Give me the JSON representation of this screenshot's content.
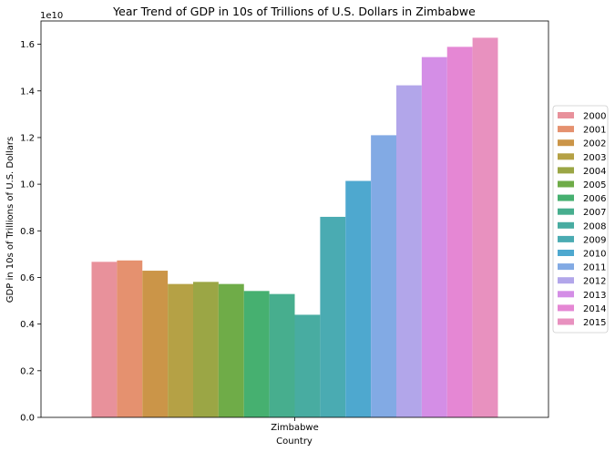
{
  "chart_data": {
    "type": "bar",
    "title": "Year Trend of GDP in 10s of Trillions of U.S. Dollars in Zimbabwe",
    "xlabel": "Country",
    "ylabel": "GDP in 10s of Trillions of U.S. Dollars",
    "axis_multiplier": "1e10",
    "categories": [
      "Zimbabwe"
    ],
    "ylim": [
      0,
      1.7
    ],
    "yticks": [
      "0.0",
      "0.2",
      "0.4",
      "0.6",
      "0.8",
      "1.0",
      "1.2",
      "1.4",
      "1.6"
    ],
    "grid": false,
    "legend_position": "center-right",
    "series": [
      {
        "name": "2000",
        "color": "#e8919b",
        "values": [
          0.667
        ]
      },
      {
        "name": "2001",
        "color": "#e5916f",
        "values": [
          0.673
        ]
      },
      {
        "name": "2002",
        "color": "#cb9548",
        "values": [
          0.629
        ]
      },
      {
        "name": "2003",
        "color": "#b5a145",
        "values": [
          0.572
        ]
      },
      {
        "name": "2004",
        "color": "#9ba645",
        "values": [
          0.581
        ]
      },
      {
        "name": "2005",
        "color": "#6fac48",
        "values": [
          0.572
        ]
      },
      {
        "name": "2006",
        "color": "#46b070",
        "values": [
          0.542
        ]
      },
      {
        "name": "2007",
        "color": "#47ae8e",
        "values": [
          0.529
        ]
      },
      {
        "name": "2008",
        "color": "#48aca1",
        "values": [
          0.44
        ]
      },
      {
        "name": "2009",
        "color": "#4aabb2",
        "values": [
          0.86
        ]
      },
      {
        "name": "2010",
        "color": "#4ea8cf",
        "values": [
          1.014
        ]
      },
      {
        "name": "2011",
        "color": "#82aae4",
        "values": [
          1.21
        ]
      },
      {
        "name": "2012",
        "color": "#b2a6ea",
        "values": [
          1.424
        ]
      },
      {
        "name": "2013",
        "color": "#d48ee6",
        "values": [
          1.545
        ]
      },
      {
        "name": "2014",
        "color": "#e587d4",
        "values": [
          1.589
        ]
      },
      {
        "name": "2015",
        "color": "#e891bf",
        "values": [
          1.628
        ]
      }
    ]
  }
}
